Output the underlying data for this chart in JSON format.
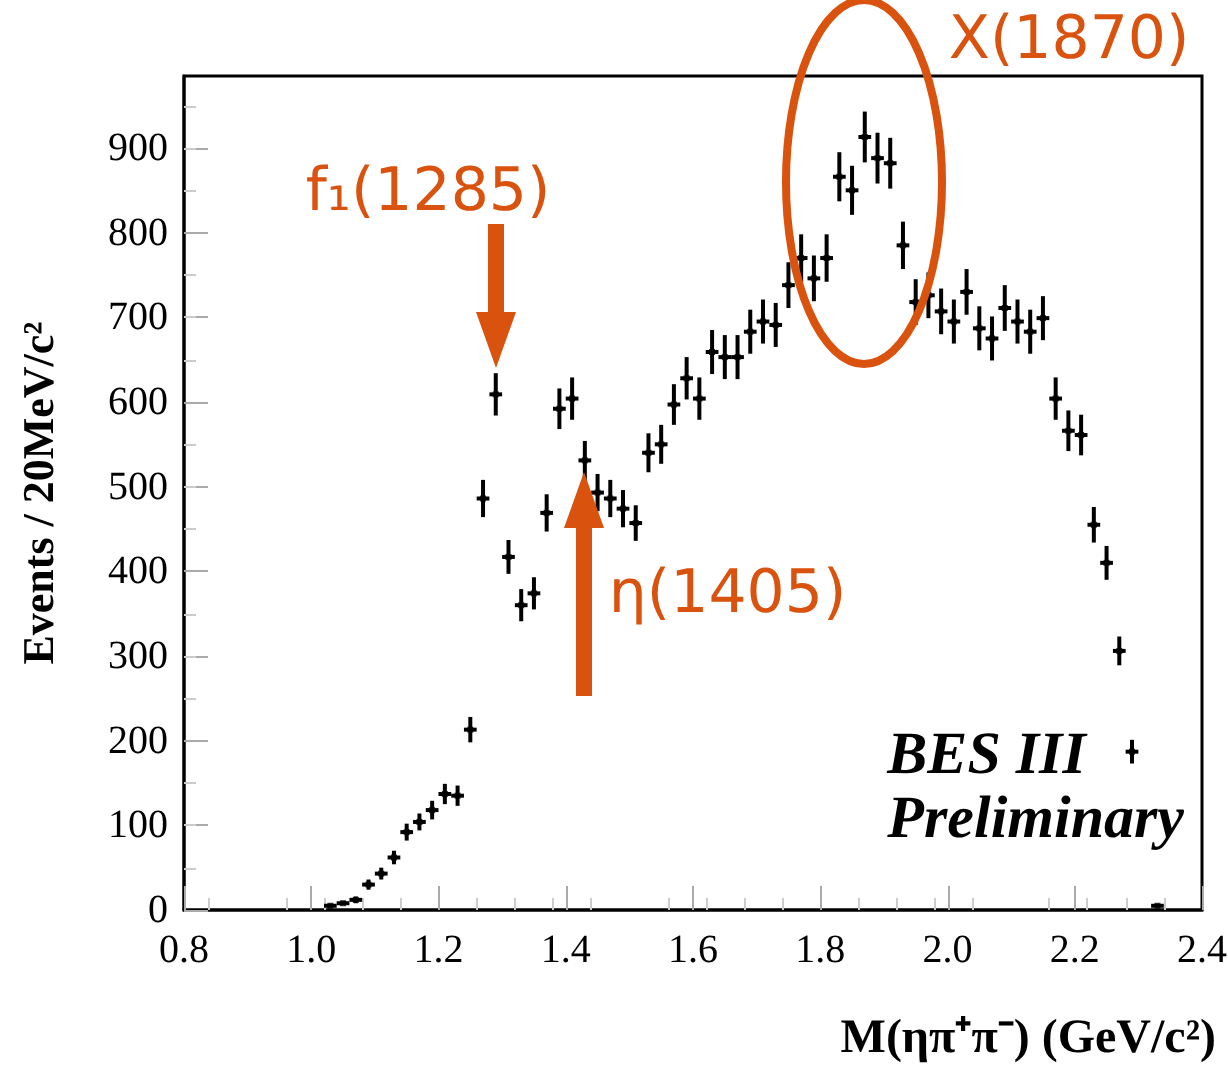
{
  "chart_data": {
    "type": "scatter",
    "xlabel": "M(ηπ⁺π⁻) (GeV/c²)",
    "ylabel": "Events / 20MeV/c²",
    "xlim": [
      0.8,
      2.4
    ],
    "xticks": [
      0.8,
      {
        "value": 1,
        "label": "1.0"
      },
      1.2,
      1.4,
      1.6,
      1.8,
      {
        "value": 2,
        "label": "2.0"
      },
      2.2,
      2.4
    ],
    "ylim": [
      0,
      985
    ],
    "yticks": [
      0,
      100,
      200,
      300,
      400,
      500,
      600,
      700,
      800,
      900
    ],
    "series": [
      {
        "color": "#000000",
        "x": [
          1.03,
          1.05,
          1.07,
          1.09,
          1.11,
          1.13,
          1.15,
          1.17,
          1.19,
          1.21,
          1.23,
          1.25,
          1.27,
          1.29,
          1.31,
          1.33,
          1.35,
          1.37,
          1.39,
          1.41,
          1.43,
          1.45,
          1.47,
          1.49,
          1.51,
          1.53,
          1.55,
          1.57,
          1.59,
          1.61,
          1.63,
          1.65,
          1.67,
          1.69,
          1.71,
          1.73,
          1.75,
          1.77,
          1.79,
          1.81,
          1.83,
          1.85,
          1.87,
          1.89,
          1.91,
          1.93,
          1.95,
          1.97,
          1.99,
          2.01,
          2.03,
          2.05,
          2.07,
          2.09,
          2.11,
          2.13,
          2.15,
          2.17,
          2.19,
          2.21,
          2.23,
          2.25,
          2.27,
          2.29,
          2.31,
          2.33
        ],
        "values": [
          5,
          8,
          12,
          30,
          43,
          62,
          92,
          104,
          118,
          137,
          135,
          213,
          486,
          609,
          417,
          360,
          374,
          469,
          592,
          604,
          531,
          493,
          486,
          474,
          457,
          540,
          550,
          597,
          628,
          604,
          659,
          653,
          653,
          683,
          695,
          691,
          738,
          770,
          746,
          770,
          866,
          850,
          913,
          888,
          882,
          785,
          718,
          726,
          707,
          695,
          730,
          687,
          675,
          711,
          695,
          683,
          699,
          604,
          566,
          561,
          455,
          410,
          306,
          187,
          null,
          5
        ],
        "errors": [
          null,
          null,
          4,
          6,
          7,
          8,
          10,
          10,
          11,
          12,
          12,
          15,
          22,
          25,
          20,
          19,
          19,
          22,
          24,
          25,
          23,
          22,
          22,
          22,
          21,
          23,
          23,
          24,
          25,
          25,
          26,
          26,
          26,
          26,
          26,
          26,
          27,
          28,
          27,
          28,
          29,
          29,
          30,
          30,
          30,
          28,
          27,
          27,
          27,
          26,
          27,
          26,
          26,
          27,
          26,
          26,
          26,
          25,
          24,
          24,
          21,
          20,
          17,
          14,
          null,
          null
        ],
        "xerrors": [
          0.01,
          0.01,
          0.01,
          0.01,
          0.01,
          0.01,
          0.01,
          0.01,
          0.01,
          0.01,
          0.01,
          0.01,
          0.01,
          0.01,
          0.01,
          0.01,
          0.01,
          0.01,
          0.01,
          0.01,
          0.01,
          0.01,
          0.01,
          0.01,
          0.01,
          0.01,
          0.01,
          0.01,
          0.01,
          0.01,
          0.01,
          0.01,
          0.01,
          0.01,
          0.01,
          0.01,
          0.01,
          0.01,
          0.01,
          0.01,
          0.01,
          0.01,
          0.01,
          0.01,
          0.01,
          0.01,
          0.01,
          0.01,
          0.01,
          0.01,
          0.01,
          0.01,
          0.01,
          0.01,
          0.01,
          0.01,
          0.01,
          0.01,
          0.01,
          0.01,
          0.01,
          0.01,
          0.01,
          0.01,
          null,
          0.01
        ]
      }
    ],
    "annotations": [
      {
        "text": "f₁(1285)",
        "x": 1.29,
        "y": 609
      },
      {
        "text": "η(1405)",
        "x": 1.43,
        "y": 531
      },
      {
        "text": "X(1870)",
        "x": 1.87,
        "y": 913
      },
      "BES III",
      "Preliminary"
    ]
  }
}
